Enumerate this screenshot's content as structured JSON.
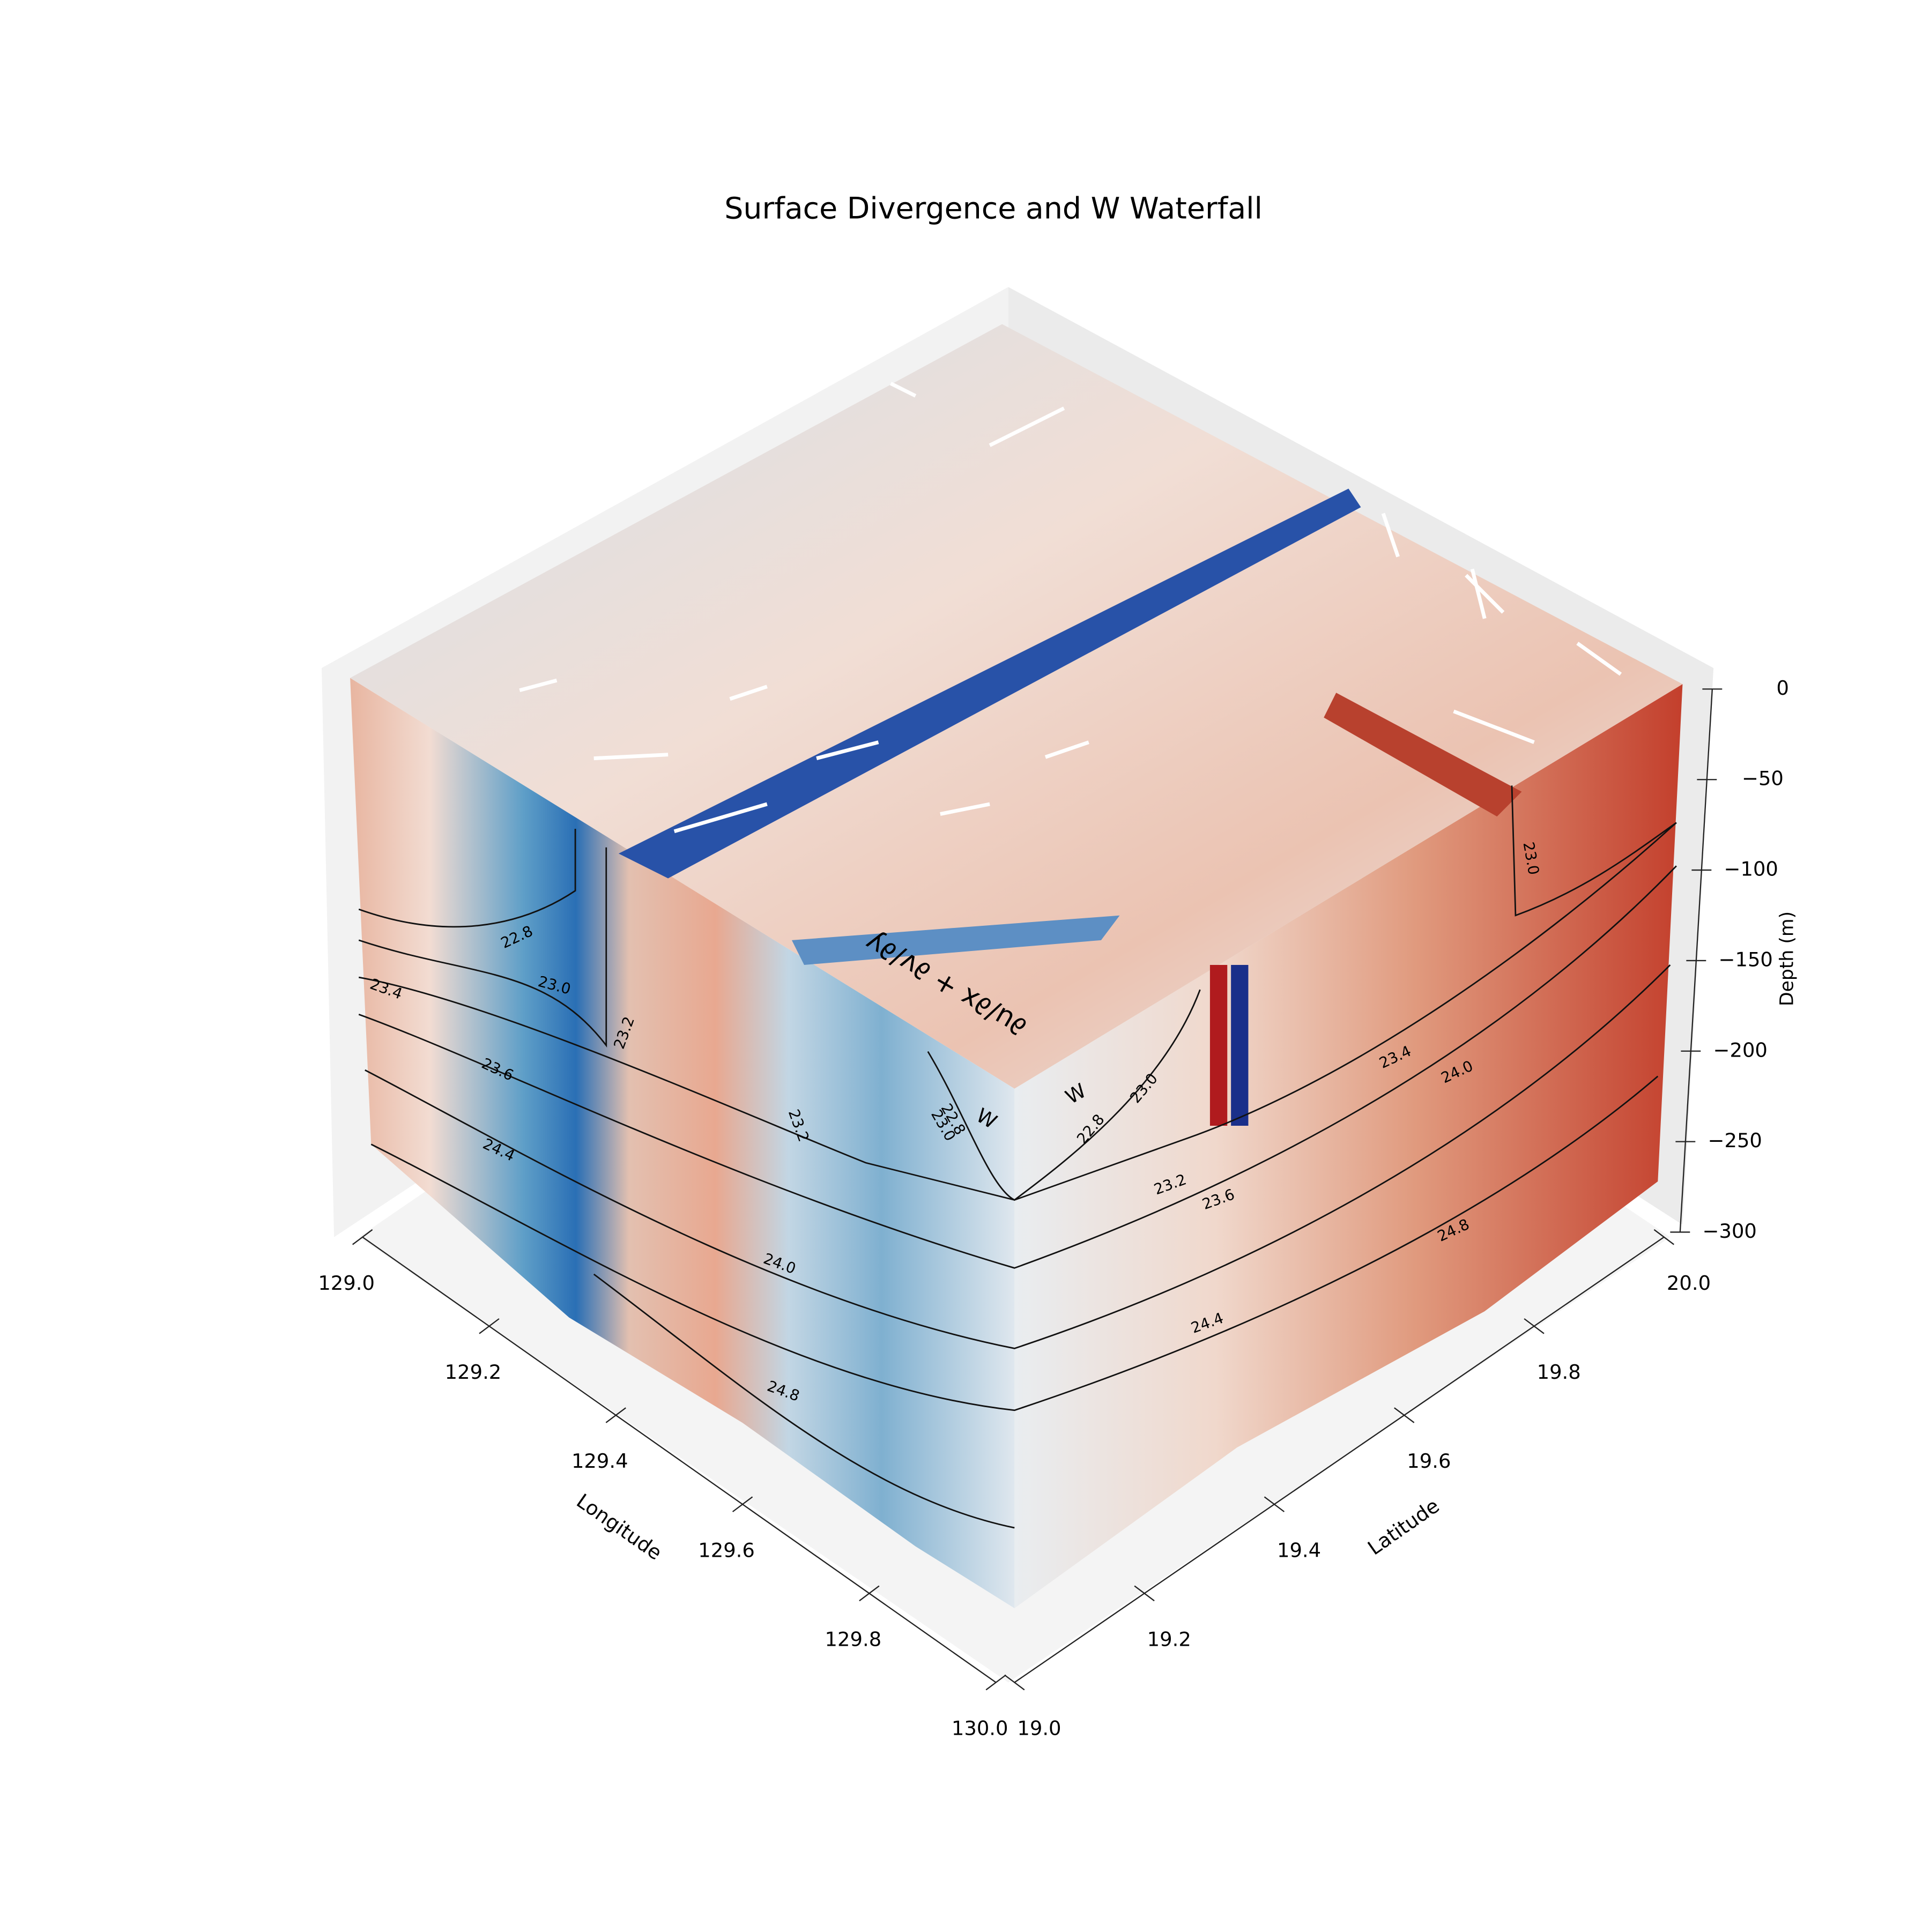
{
  "chart_data": {
    "type": "surface3d",
    "title": "Surface Divergence and W Waterfall",
    "xlabel": "Longitude",
    "ylabel": "Latitude",
    "zlabel": "Depth (m)",
    "xlim": [
      129.0,
      130.0
    ],
    "xticks": [
      {
        "value": 129,
        "label": "129.0"
      },
      129.2,
      129.4,
      129.6,
      129.8,
      {
        "value": 130,
        "label": "130.0"
      }
    ],
    "ylim": [
      19.0,
      20.0
    ],
    "yticks": [
      {
        "value": 19,
        "label": "19.0"
      },
      19.2,
      19.4,
      19.6,
      19.8,
      {
        "value": 20,
        "label": "20.0"
      }
    ],
    "zlim": [
      -300,
      0
    ],
    "zticks": [
      {
        "value": -300,
        "label": "−300"
      },
      {
        "value": -250,
        "label": "−250"
      },
      {
        "value": -200,
        "label": "−200"
      },
      {
        "value": -150,
        "label": "−150"
      },
      {
        "value": -100,
        "label": "−100"
      },
      {
        "value": -50,
        "label": "−50"
      },
      0
    ],
    "cmap": "RdBu_r",
    "face_annotations": [
      "∂u/∂x + ∂v/∂y",
      "W",
      "W"
    ],
    "contour_labels": [
      22.8,
      {
        "value": 23,
        "label": "23.0"
      },
      23.4,
      23.2,
      23.6,
      24.4,
      23.2,
      {
        "value": 24,
        "label": "24.0"
      },
      24.8,
      22.8,
      {
        "value": 23,
        "label": "23.0"
      },
      22.8,
      {
        "value": 23,
        "label": "23.0"
      },
      23.2,
      23.6,
      23.4,
      {
        "value": 24,
        "label": "24.0"
      },
      24.4,
      24.8,
      {
        "value": 23,
        "label": "23.0"
      }
    ]
  }
}
